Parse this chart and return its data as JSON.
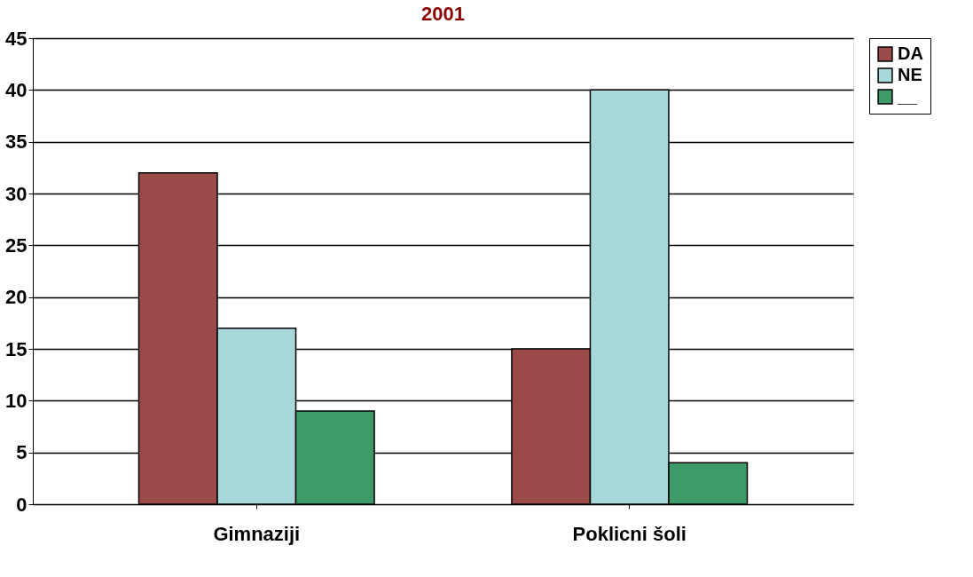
{
  "chart_data": {
    "type": "bar",
    "title": "2001",
    "categories": [
      "Gimnaziji",
      "Poklicni šoli"
    ],
    "series": [
      {
        "name": "DA",
        "color": "#9b4a4a",
        "values": [
          32,
          15
        ]
      },
      {
        "name": "NE",
        "color": "#a8d8da",
        "values": [
          17,
          40
        ]
      },
      {
        "name": "__",
        "color": "#3f9a6a",
        "values": [
          9,
          4
        ]
      }
    ],
    "ylim": [
      0,
      45
    ],
    "yticks": [
      0,
      5,
      10,
      15,
      20,
      25,
      30,
      35,
      40,
      45
    ],
    "grid": "y",
    "legend": "right"
  }
}
